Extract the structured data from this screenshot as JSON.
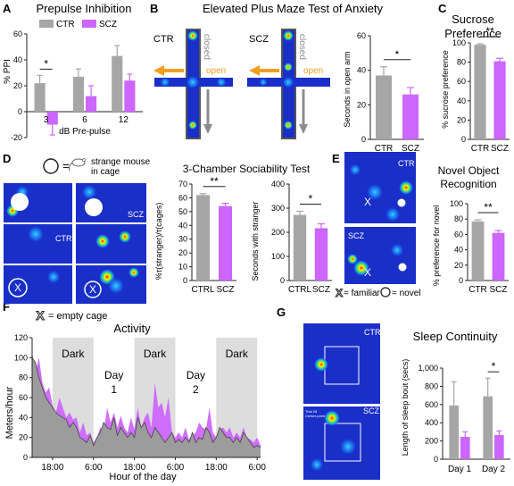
{
  "colors": {
    "ctr": "#a6a6a6",
    "scz": "#cc66ff",
    "dark": "#dddddd",
    "text": "#222222",
    "open_arrow": "#f0a020",
    "closed_arrow": "#8c8c8c"
  },
  "legend": {
    "ctr": "CTR",
    "scz": "SCZ"
  },
  "panels": {
    "A": {
      "letter": "A"
    },
    "B": {
      "letter": "B",
      "heatmap_ctr": "CTR",
      "heatmap_scz": "SCZ",
      "closed": "closed",
      "open": "open"
    },
    "C": {
      "letter": "C"
    },
    "D": {
      "letter": "D",
      "legend_stranger": "= strange mouse in cage",
      "legend_empty": "= empty cage",
      "mark": "X",
      "heatmap_ctr": "CTR",
      "heatmap_scz": "SCZ"
    },
    "E": {
      "letter": "E",
      "heatmap_ctr": "CTR",
      "heatmap_scz": "SCZ",
      "legend_familiar": "= familiar",
      "legend_novel": "= novel",
      "mark": "X"
    },
    "F": {
      "letter": "F",
      "dark_label": "Dark",
      "day_labels": [
        "Day",
        "1",
        "Day",
        "2"
      ]
    },
    "G": {
      "letter": "G",
      "heatmap_ctr": "CTR",
      "heatmap_scz": "SCZ",
      "trial_text": "Trial 28",
      "center_text": "Center-point"
    }
  },
  "chart_data": [
    {
      "id": "A",
      "type": "bar",
      "title": "Prepulse Inhibition",
      "xlabel": "dB Pre-pulse",
      "ylabel": "% PPI",
      "categories": [
        "3",
        "6",
        "12"
      ],
      "ylim": [
        -20,
        60
      ],
      "yticks": [
        -20,
        0,
        20,
        40,
        60
      ],
      "grid": false,
      "series": [
        {
          "name": "CTR",
          "values": [
            22,
            27,
            43
          ],
          "errors": [
            6,
            6,
            8
          ]
        },
        {
          "name": "SCZ",
          "values": [
            -10,
            12,
            24
          ],
          "errors": [
            8,
            8,
            5
          ]
        }
      ],
      "significance": [
        {
          "category": "3",
          "label": "*"
        }
      ]
    },
    {
      "id": "B",
      "type": "bar",
      "title": "Elevated Plus Maze Test of Anxiety",
      "xlabel": "",
      "ylabel": "Seconds in open arm",
      "categories": [
        "CTR",
        "SCZ"
      ],
      "values": [
        37,
        26
      ],
      "errors": [
        5,
        4
      ],
      "ylim": [
        0,
        60
      ],
      "yticks": [
        0,
        20,
        40,
        60
      ],
      "significance": [
        "*"
      ]
    },
    {
      "id": "C",
      "type": "bar",
      "title": "Sucrose Preference",
      "xlabel": "",
      "ylabel": "% sucrose preference",
      "categories": [
        "CTR",
        "SCZ"
      ],
      "values": [
        98,
        81
      ],
      "errors": [
        1,
        3
      ],
      "ylim": [
        0,
        100
      ],
      "yticks": [
        0,
        20,
        40,
        60,
        80,
        100
      ],
      "significance": [
        "**"
      ]
    },
    {
      "id": "D1",
      "type": "bar",
      "title": "3-Chamber Sociability Test",
      "xlabel": "",
      "ylabel": "%τ(stranger)/τ(cages)",
      "categories": [
        "CTRL",
        "SCZ"
      ],
      "values": [
        62,
        54
      ],
      "errors": [
        1,
        2
      ],
      "ylim": [
        0,
        70
      ],
      "yticks": [
        0,
        10,
        20,
        30,
        40,
        50,
        60,
        70
      ],
      "significance": [
        "**"
      ]
    },
    {
      "id": "D2",
      "type": "bar",
      "title": "",
      "xlabel": "",
      "ylabel": "Seconds with stranger",
      "categories": [
        "CTRL",
        "SCZ"
      ],
      "values": [
        272,
        217
      ],
      "errors": [
        15,
        18
      ],
      "ylim": [
        0,
        400
      ],
      "yticks": [
        0,
        100,
        200,
        300,
        400
      ],
      "significance": [
        "*"
      ]
    },
    {
      "id": "E",
      "type": "bar",
      "title": "Novel Object Recognition",
      "xlabel": "",
      "ylabel": "% preference for novel",
      "categories": [
        "CTR",
        "SCZ"
      ],
      "values": [
        77,
        62
      ],
      "errors": [
        2,
        3
      ],
      "ylim": [
        0,
        100
      ],
      "yticks": [
        0,
        20,
        40,
        60,
        80,
        100
      ],
      "significance": [
        "**"
      ]
    },
    {
      "id": "F",
      "type": "area",
      "title": "Activity",
      "xlabel": "Hour of the day",
      "ylabel": "Meters/hour",
      "ylim": [
        0,
        120
      ],
      "yticks": [
        0,
        20,
        40,
        60,
        80,
        100,
        120
      ],
      "x": [
        "12:00",
        "13:00",
        "14:00",
        "15:00",
        "16:00",
        "17:00",
        "18:00",
        "19:00",
        "20:00",
        "21:00",
        "22:00",
        "23:00",
        "00:00",
        "01:00",
        "02:00",
        "03:00",
        "04:00",
        "05:00",
        "06:00",
        "07:00",
        "08:00",
        "09:00",
        "10:00",
        "11:00",
        "12:00",
        "13:00",
        "14:00",
        "15:00",
        "16:00",
        "17:00",
        "18:00",
        "19:00",
        "20:00",
        "21:00",
        "22:00",
        "23:00",
        "00:00",
        "01:00",
        "02:00",
        "03:00",
        "04:00",
        "05:00",
        "06:00",
        "07:00",
        "08:00",
        "09:00",
        "10:00",
        "11:00",
        "12:00",
        "13:00",
        "14:00",
        "15:00",
        "16:00",
        "17:00",
        "18:00",
        "19:00",
        "20:00",
        "21:00",
        "22:00",
        "23:00",
        "00:00",
        "01:00",
        "02:00",
        "03:00",
        "04:00",
        "05:00",
        "06:00",
        "07:00"
      ],
      "xticks": [
        "18:00",
        "6:00",
        "18:00",
        "6:00",
        "18:00",
        "6:00"
      ],
      "dark_periods": [
        {
          "from": "18:00",
          "to": "06:00"
        },
        {
          "from": "18:00",
          "to": "06:00"
        },
        {
          "from": "18:00",
          "to": "06:00"
        }
      ],
      "series": [
        {
          "name": "CTR",
          "values": [
            100,
            95,
            80,
            70,
            60,
            55,
            50,
            45,
            42,
            40,
            38,
            30,
            35,
            30,
            20,
            18,
            15,
            22,
            12,
            20,
            25,
            35,
            30,
            28,
            40,
            22,
            30,
            25,
            20,
            25,
            20,
            40,
            30,
            35,
            25,
            20,
            30,
            25,
            20,
            15,
            20,
            25,
            15,
            18,
            15,
            20,
            15,
            25,
            15,
            20,
            18,
            30,
            25,
            15,
            20,
            30,
            25,
            20,
            20,
            15,
            20,
            15,
            25,
            20,
            15,
            10,
            12,
            10
          ]
        },
        {
          "name": "SCZ",
          "values": [
            105,
            85,
            100,
            75,
            65,
            70,
            52,
            45,
            60,
            50,
            40,
            45,
            38,
            40,
            25,
            35,
            22,
            25,
            15,
            20,
            30,
            25,
            50,
            35,
            45,
            30,
            42,
            30,
            25,
            40,
            28,
            50,
            30,
            40,
            45,
            30,
            75,
            50,
            55,
            40,
            60,
            25,
            20,
            25,
            20,
            30,
            18,
            22,
            25,
            35,
            30,
            28,
            50,
            25,
            20,
            28,
            30,
            25,
            30,
            20,
            25,
            20,
            30,
            20,
            18,
            15,
            20,
            12
          ]
        }
      ]
    },
    {
      "id": "G",
      "type": "bar",
      "title": "Sleep Continuity",
      "xlabel": "",
      "ylabel": "Length of sleep bout (secs)",
      "categories": [
        "Day 1",
        "Day 2"
      ],
      "ylim": [
        0,
        1000
      ],
      "yticks": [
        0,
        200,
        400,
        600,
        800,
        1000
      ],
      "ytick_labels": [
        "0",
        "200",
        "400",
        "600",
        "800",
        "1,000"
      ],
      "series": [
        {
          "name": "CTR",
          "values": [
            590,
            690
          ],
          "errors": [
            260,
            200
          ]
        },
        {
          "name": "SCZ",
          "values": [
            245,
            265
          ],
          "errors": [
            55,
            45
          ]
        }
      ],
      "significance": [
        {
          "category": "Day 2",
          "label": "*"
        }
      ]
    }
  ]
}
